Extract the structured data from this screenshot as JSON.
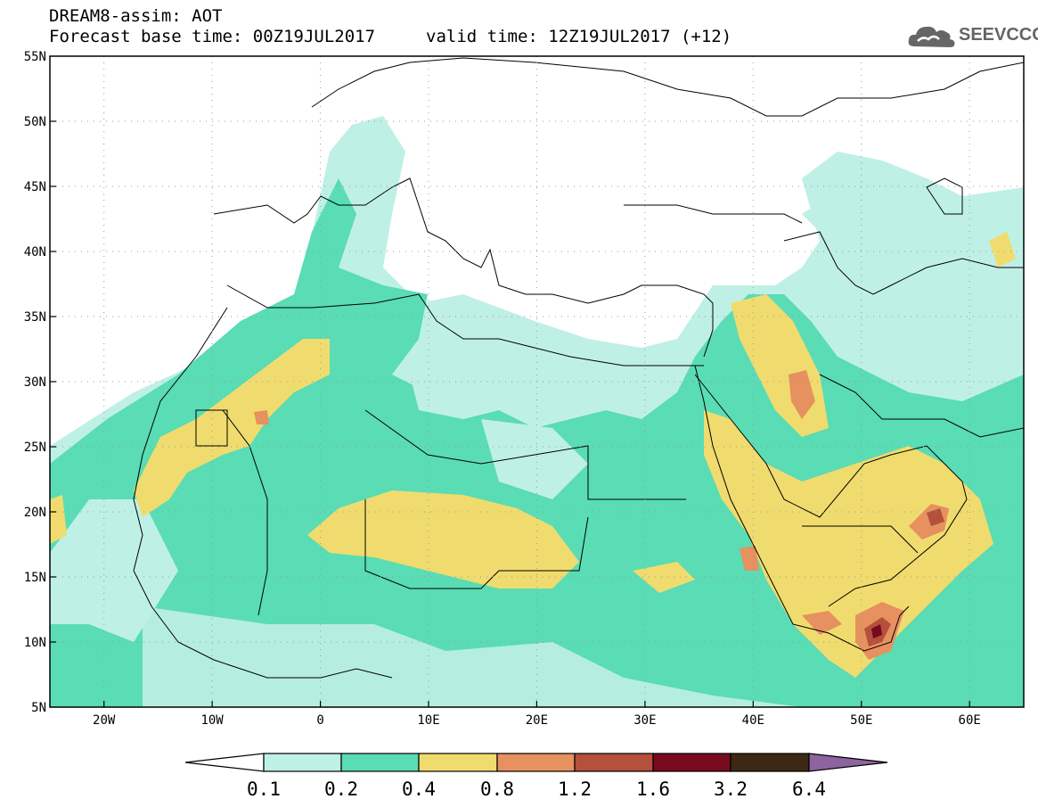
{
  "header": {
    "title": "DREAM8-assim: AOT",
    "base_time": "Forecast base time: 00Z19JUL2017",
    "valid_time": "valid time: 12Z19JUL2017 (+12)"
  },
  "logo": {
    "text": "SEEVCCC",
    "icon": "cloud-icon"
  },
  "map": {
    "projection": "lat-lon",
    "lon_range": [
      -25,
      65
    ],
    "lat_range": [
      5,
      55
    ],
    "lat_labels": [
      "55N",
      "50N",
      "45N",
      "40N",
      "35N",
      "30N",
      "25N",
      "20N",
      "15N",
      "10N",
      "5N"
    ],
    "lon_labels": [
      "20W",
      "10W",
      "0",
      "10E",
      "20E",
      "30E",
      "40E",
      "50E",
      "60E"
    ],
    "gridlines": "dotted"
  },
  "colorbar": {
    "labels": [
      "0.1",
      "0.2",
      "0.4",
      "0.8",
      "1.2",
      "1.6",
      "3.2",
      "6.4"
    ],
    "colors": [
      "#ffffff",
      "#bff0e6",
      "#5adcb4",
      "#f0dc6e",
      "#e6915f",
      "#b4503c",
      "#780a1e",
      "#3c2814",
      "#8c64a0"
    ]
  }
}
